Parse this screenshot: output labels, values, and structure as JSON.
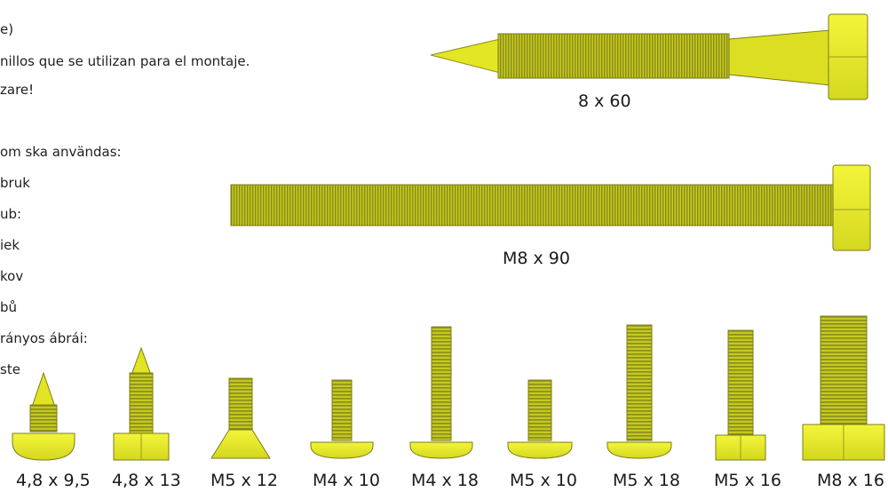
{
  "text_lines": [
    "e)",
    "nillos que se utilizan para el montaje.",
    "zare!",
    "om ska användas:",
    "bruk",
    "ub:",
    "iek",
    "kov",
    "bů",
    "rányos ábrái:",
    "ste"
  ],
  "screws": [
    {
      "label": "8 x 60"
    },
    {
      "label": "M8 x 90"
    },
    {
      "label": "4,8 x 9,5"
    },
    {
      "label": "4,8 x 13"
    },
    {
      "label": "M5 x 12"
    },
    {
      "label": "M4 x 10"
    },
    {
      "label": "M4 x 18"
    },
    {
      "label": "M5 x 10"
    },
    {
      "label": "M5 x 18"
    },
    {
      "label": "M5 x 16"
    },
    {
      "label": "M8 x 16"
    }
  ],
  "colors": {
    "screw_body": "#d9de1f",
    "screw_thread": "#a6a81e",
    "screw_edge": "#6f7016",
    "head": "#eef02a"
  }
}
